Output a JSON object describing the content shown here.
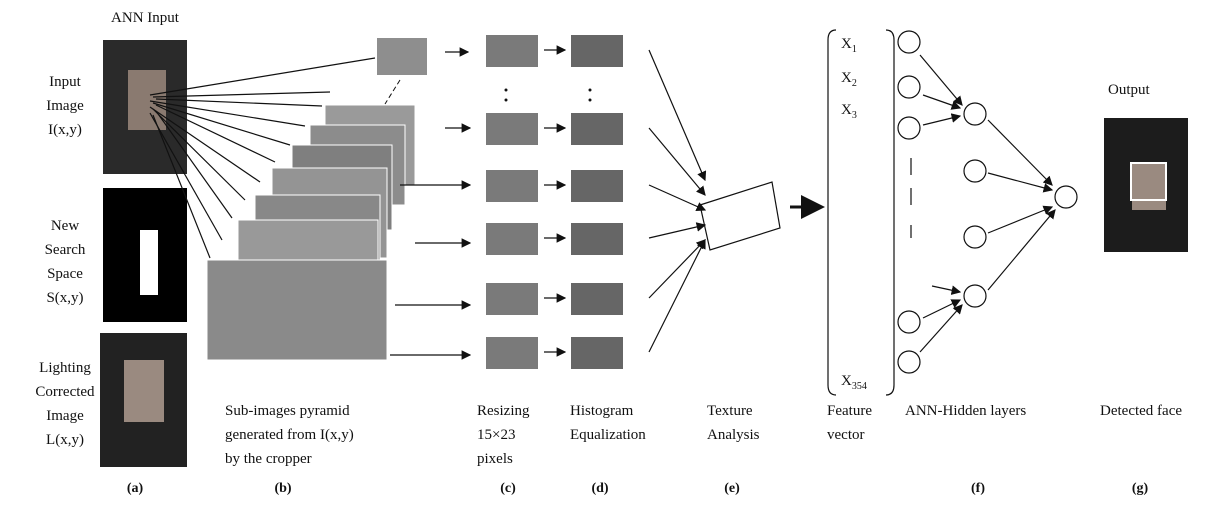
{
  "panel_a": {
    "title": "ANN Input",
    "input_image": [
      "Input",
      "Image",
      "I(x,y)"
    ],
    "search_space": [
      "New",
      "Search",
      "Space",
      "S(x,y)"
    ],
    "lighting": [
      "Lighting",
      "Corrected",
      "Image",
      "L(x,y)"
    ],
    "caption": "(a)"
  },
  "panel_b": {
    "label": [
      "Sub-images pyramid",
      "generated from I(x,y)",
      "by the cropper"
    ],
    "caption": "(b)"
  },
  "panel_c": {
    "label": [
      "Resizing",
      "15×23",
      "pixels"
    ],
    "caption": "(c)"
  },
  "panel_d": {
    "label": [
      "Histogram",
      "Equalization"
    ],
    "caption": "(d)"
  },
  "panel_e": {
    "label": [
      "Texture",
      "Analysis"
    ],
    "caption": "(e)"
  },
  "feature_vector": {
    "items": [
      {
        "base": "X",
        "sub": "1"
      },
      {
        "base": "X",
        "sub": "2"
      },
      {
        "base": "X",
        "sub": "3"
      },
      {
        "base": "X",
        "sub": "354"
      }
    ],
    "label": [
      "Feature",
      "vector"
    ]
  },
  "panel_f": {
    "label": "ANN-Hidden layers",
    "caption": "(f)"
  },
  "panel_g": {
    "title": "Output",
    "label": "Detected face",
    "caption": "(g)"
  }
}
